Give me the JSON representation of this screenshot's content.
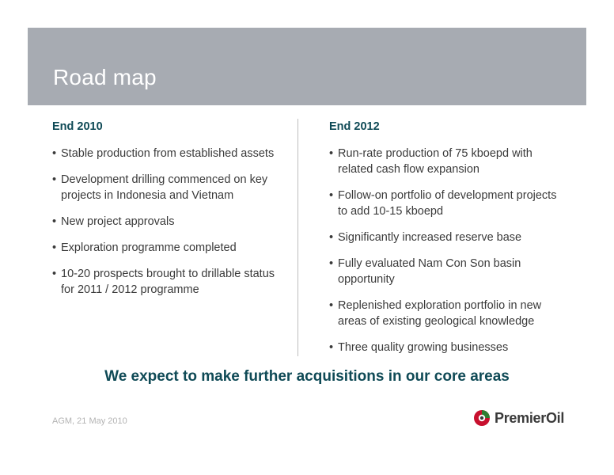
{
  "header": {
    "title": "Road map"
  },
  "left_column": {
    "heading": "End 2010",
    "items": [
      "Stable production from established assets",
      "Development drilling commenced on key projects in Indonesia and Vietnam",
      "New project approvals",
      "Exploration programme completed",
      "10-20 prospects brought to drillable status for 2011 / 2012 programme"
    ]
  },
  "right_column": {
    "heading": "End 2012",
    "items": [
      "Run-rate production of 75 kboepd with related cash flow expansion",
      "Follow-on portfolio of development projects to add 10-15 kboepd",
      "Significantly increased reserve base",
      "Fully evaluated Nam Con Son basin opportunity",
      "Replenished exploration portfolio in new areas of existing geological knowledge",
      "Three quality growing businesses"
    ]
  },
  "tagline": "We expect to make further acquisitions in our core areas",
  "footer": {
    "note": "AGM, 21 May 2010"
  },
  "logo": {
    "text": "PremierOil",
    "icon": "premier-oil-logo-icon",
    "colors": {
      "red": "#c8102e",
      "green": "#2e7d32",
      "dark": "#3a3a3a"
    }
  }
}
